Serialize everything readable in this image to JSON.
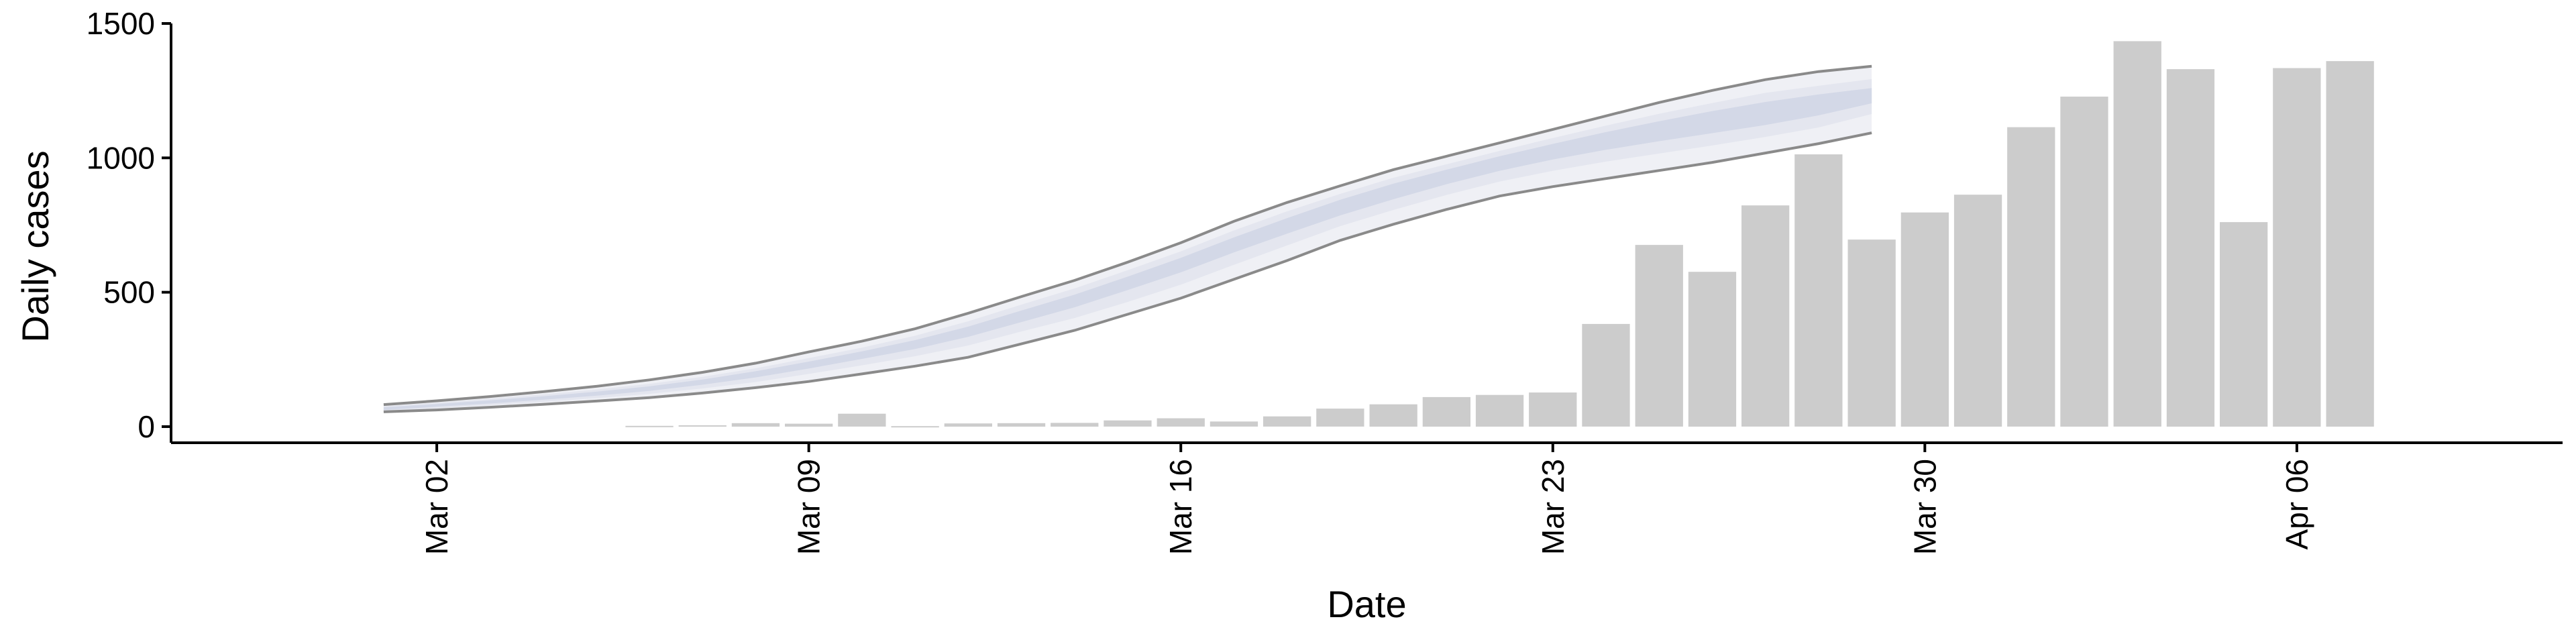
{
  "chart_data": {
    "type": "bar",
    "xlabel": "Date",
    "ylabel": "Daily cases",
    "ylim": [
      -60,
      1500
    ],
    "yticks": [
      0,
      500,
      1000,
      1500
    ],
    "xlim": [
      "2020-02-26",
      "2020-04-11"
    ],
    "xticks": [
      {
        "date": "2020-03-02",
        "label": "Mar 02"
      },
      {
        "date": "2020-03-09",
        "label": "Mar 09"
      },
      {
        "date": "2020-03-16",
        "label": "Mar 16"
      },
      {
        "date": "2020-03-23",
        "label": "Mar 23"
      },
      {
        "date": "2020-03-30",
        "label": "Mar 30"
      },
      {
        "date": "2020-04-06",
        "label": "Apr 06"
      }
    ],
    "grid": false,
    "legend": "none",
    "colors": {
      "bars": "#cccccc",
      "outer_band": "#eff0f5",
      "mid_band": "#e4e6ef",
      "inner_band": "#d3d8e7",
      "band_edges": "#8a8a8a",
      "axis": "#000000"
    },
    "bars": {
      "name": "",
      "dates": [
        "2020-03-06",
        "2020-03-07",
        "2020-03-08",
        "2020-03-09",
        "2020-03-10",
        "2020-03-11",
        "2020-03-12",
        "2020-03-13",
        "2020-03-14",
        "2020-03-15",
        "2020-03-16",
        "2020-03-17",
        "2020-03-18",
        "2020-03-19",
        "2020-03-20",
        "2020-03-21",
        "2020-03-22",
        "2020-03-23",
        "2020-03-24",
        "2020-03-25",
        "2020-03-26",
        "2020-03-27",
        "2020-03-28",
        "2020-03-29",
        "2020-03-30",
        "2020-03-31",
        "2020-04-01",
        "2020-04-02",
        "2020-04-03",
        "2020-04-04",
        "2020-04-05",
        "2020-04-06",
        "2020-04-07"
      ],
      "values": [
        3,
        5,
        13,
        11,
        48,
        2,
        12,
        13,
        14,
        23,
        31,
        19,
        38,
        67,
        83,
        110,
        118,
        127,
        382,
        676,
        576,
        823,
        1013,
        696,
        797,
        863,
        1114,
        1228,
        1434,
        1330,
        761,
        1334,
        1360
      ]
    },
    "projection": {
      "dates": [
        "2020-03-01",
        "2020-03-02",
        "2020-03-03",
        "2020-03-04",
        "2020-03-05",
        "2020-03-06",
        "2020-03-07",
        "2020-03-08",
        "2020-03-09",
        "2020-03-10",
        "2020-03-11",
        "2020-03-12",
        "2020-03-13",
        "2020-03-14",
        "2020-03-15",
        "2020-03-16",
        "2020-03-17",
        "2020-03-18",
        "2020-03-19",
        "2020-03-20",
        "2020-03-21",
        "2020-03-22",
        "2020-03-23",
        "2020-03-24",
        "2020-03-25",
        "2020-03-26",
        "2020-03-27",
        "2020-03-28",
        "2020-03-29"
      ],
      "lower_90": [
        55,
        62,
        72,
        83,
        95,
        108,
        125,
        145,
        168,
        196,
        225,
        258,
        308,
        358,
        418,
        478,
        548,
        618,
        693,
        753,
        808,
        858,
        893,
        923,
        953,
        983,
        1018,
        1053,
        1093
      ],
      "lower_50": [
        58,
        68,
        80,
        92,
        106,
        122,
        142,
        166,
        196,
        228,
        262,
        302,
        354,
        404,
        464,
        528,
        602,
        674,
        746,
        806,
        862,
        912,
        952,
        986,
        1016,
        1046,
        1078,
        1113,
        1163
      ],
      "lower_20": [
        62,
        74,
        86,
        100,
        115,
        133,
        156,
        183,
        216,
        252,
        289,
        334,
        389,
        444,
        508,
        574,
        648,
        718,
        786,
        846,
        902,
        952,
        994,
        1030,
        1062,
        1092,
        1122,
        1158,
        1203
      ],
      "upper_20": [
        72,
        84,
        98,
        113,
        130,
        150,
        175,
        206,
        242,
        280,
        322,
        372,
        432,
        491,
        558,
        628,
        704,
        776,
        844,
        904,
        956,
        1006,
        1052,
        1096,
        1136,
        1174,
        1208,
        1236,
        1260
      ],
      "upper_50": [
        76,
        89,
        104,
        120,
        138,
        159,
        185,
        217,
        255,
        294,
        338,
        392,
        454,
        514,
        582,
        652,
        730,
        801,
        866,
        926,
        976,
        1026,
        1074,
        1120,
        1164,
        1204,
        1242,
        1268,
        1293
      ],
      "upper_90": [
        82,
        96,
        112,
        130,
        150,
        174,
        202,
        236,
        278,
        318,
        364,
        422,
        484,
        544,
        612,
        684,
        764,
        834,
        896,
        956,
        1006,
        1056,
        1106,
        1156,
        1206,
        1251,
        1291,
        1321,
        1341
      ]
    }
  }
}
